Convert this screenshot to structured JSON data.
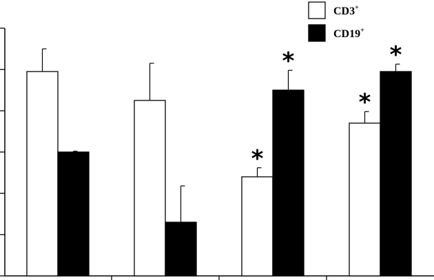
{
  "chart_data": {
    "type": "bar",
    "title": "",
    "xlabel": "",
    "ylabel": "",
    "categories": [
      "",
      "",
      "",
      ""
    ],
    "ylim": [
      0,
      6
    ],
    "grid": false,
    "legend_placement": "top-right",
    "series": [
      {
        "name": "CD3",
        "superscript": "+",
        "color": "#ffffff",
        "values": [
          4.95,
          4.25,
          2.4,
          3.7
        ],
        "errors": [
          0.55,
          0.9,
          0.22,
          0.28
        ],
        "annotations": [
          "",
          "",
          "*",
          "*"
        ]
      },
      {
        "name": "CD19",
        "superscript": "+",
        "color": "#000000",
        "values": [
          3.0,
          1.3,
          4.5,
          4.95
        ],
        "errors": [
          0.02,
          0.88,
          0.48,
          0.18
        ],
        "annotations": [
          "",
          "",
          "*",
          "*"
        ]
      }
    ]
  }
}
